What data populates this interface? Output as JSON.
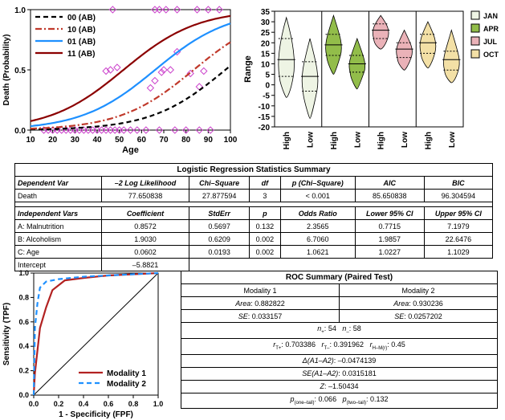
{
  "logistic_curve_chart": {
    "ylabel": "Death (Probability)",
    "xlabel": "Age",
    "legend": [
      "00 (AB)",
      "10 (AB)",
      "01 (AB)",
      "11 (AB)"
    ],
    "xticks": [
      "10",
      "20",
      "30",
      "40",
      "50",
      "60",
      "70",
      "80",
      "90",
      "100"
    ],
    "yticks": [
      "0.0",
      "0.5",
      "1.0"
    ]
  },
  "violin_chart": {
    "ylabel": "Range",
    "yticks": [
      "-20",
      "-15",
      "-10",
      "-5",
      "0",
      "5",
      "10",
      "15",
      "20",
      "25",
      "30",
      "35"
    ],
    "legend": [
      "JAN",
      "APR",
      "JUL",
      "OCT"
    ],
    "colors": {
      "JAN": "#eef4e4",
      "APR": "#92bd4a",
      "JUL": "#eab2b8",
      "OCT": "#f3e0a6"
    },
    "xlabels": [
      "High",
      "Low",
      "High",
      "Low",
      "High",
      "Low",
      "High",
      "Low"
    ]
  },
  "logit_table": {
    "title": "Logistic Regression Statistics Summary",
    "header1": [
      "Dependent Var",
      "–2 Log Likelihood",
      "Chi–Square",
      "df",
      "p (Chi–Square)",
      "AIC",
      "BIC"
    ],
    "row1": [
      "Death",
      "77.650838",
      "27.877594",
      "3",
      "< 0.001",
      "85.650838",
      "96.304594"
    ],
    "header2": [
      "Independent Vars",
      "Coefficient",
      "StdErr",
      "p",
      "Odds Ratio",
      "Lower 95% CI",
      "Upper 95% CI"
    ],
    "rows": [
      [
        "A: Malnutrition",
        "0.8572",
        "0.5697",
        "0.132",
        "2.3565",
        "0.7715",
        "7.1979"
      ],
      [
        "B: Alcoholism",
        "1.9030",
        "0.6209",
        "0.002",
        "6.7060",
        "1.9857",
        "22.6476"
      ],
      [
        "C: Age",
        "0.0602",
        "0.0193",
        "0.002",
        "1.0621",
        "1.0227",
        "1.1029"
      ]
    ],
    "intercept_label": "Intercept",
    "intercept_value": "–5.8821"
  },
  "roc_chart": {
    "ylabel": "Sensitivity (TPF)",
    "xlabel": "1 - Specificity (FPF)",
    "legend": [
      "Modality 1",
      "Modality 2"
    ],
    "ticks": [
      "0.0",
      "0.2",
      "0.4",
      "0.6",
      "0.8",
      "1.0"
    ]
  },
  "roc_table": {
    "title": "ROC Summary (Paired Test)",
    "mod1": "Modality 1",
    "mod2": "Modality 2",
    "area_label": "Area",
    "area1": "0.882822",
    "area2": "0.930236",
    "se_label": "SE",
    "se1": "0.033157",
    "se2": "0.0257202",
    "n_plus": "54",
    "n_minus": "58",
    "r_tplus": "0.703386",
    "r_tminus": "0.391962",
    "r_hm": "0.45",
    "delta_label": "Δ(A1–A2)",
    "delta": "–0.0474139",
    "se_diff_label": "SE(A1–A2)",
    "se_diff": "0.0315181",
    "z_label": "Z",
    "z": "–1.50434",
    "p_one": "0.066",
    "p_two": "0.132"
  },
  "chart_data": [
    {
      "type": "line",
      "ylabel": "Death (Probability)",
      "xlabel": "Age",
      "xlim": [
        10,
        100
      ],
      "ylim": [
        0,
        1
      ],
      "series": [
        {
          "name": "00 (AB)",
          "color": "#000000",
          "style": "dashed",
          "b0": -5.8821,
          "b1": 0.0602
        },
        {
          "name": "10 (AB)",
          "color": "#c0392b",
          "style": "dash-dot",
          "b0": -5.0249,
          "b1": 0.0602
        },
        {
          "name": "01 (AB)",
          "color": "#1e90ff",
          "style": "solid",
          "b0": -3.9791,
          "b1": 0.0602
        },
        {
          "name": "11 (AB)",
          "color": "#8b0000",
          "style": "solid",
          "b0": -3.1219,
          "b1": 0.0602
        }
      ],
      "points_top": [
        [
          47,
          1
        ],
        [
          66,
          1
        ],
        [
          68,
          1
        ],
        [
          71,
          1
        ],
        [
          76,
          1
        ],
        [
          85,
          1
        ],
        [
          90,
          1
        ],
        [
          95,
          1
        ]
      ],
      "points_mid": [
        [
          44,
          0.49
        ],
        [
          46,
          0.5
        ],
        [
          49,
          0.52
        ],
        [
          64,
          0.35
        ],
        [
          66,
          0.41
        ],
        [
          69,
          0.48
        ],
        [
          70,
          0.5
        ],
        [
          73,
          0.5
        ],
        [
          76,
          0.65
        ],
        [
          82,
          0.47
        ],
        [
          86,
          0.36
        ],
        [
          88,
          0.49
        ]
      ],
      "points_bottom": [
        [
          16,
          0
        ],
        [
          18,
          0
        ],
        [
          20,
          0
        ],
        [
          22,
          0
        ],
        [
          24,
          0
        ],
        [
          26,
          0
        ],
        [
          28,
          0
        ],
        [
          30,
          0
        ],
        [
          32,
          0
        ],
        [
          34,
          0
        ],
        [
          36,
          0
        ],
        [
          38,
          0
        ],
        [
          40,
          0
        ],
        [
          42,
          0
        ],
        [
          44,
          0
        ],
        [
          46,
          0
        ],
        [
          48,
          0
        ],
        [
          50,
          0
        ],
        [
          52,
          0
        ],
        [
          55,
          0
        ],
        [
          58,
          0
        ],
        [
          62,
          0
        ],
        [
          68,
          0
        ],
        [
          75,
          0
        ],
        [
          80,
          0
        ],
        [
          86,
          0
        ],
        [
          91,
          0
        ]
      ]
    },
    {
      "type": "violin",
      "ylabel": "Range",
      "ylim": [
        -20,
        35
      ],
      "groups": [
        {
          "month": "JAN",
          "class": "High",
          "min": -6,
          "max": 32,
          "median": 12,
          "q1": 4,
          "q3": 22
        },
        {
          "month": "JAN",
          "class": "Low",
          "min": -16,
          "max": 22,
          "median": 4,
          "q1": -3,
          "q3": 11
        },
        {
          "month": "APR",
          "class": "High",
          "min": 5,
          "max": 33,
          "median": 19,
          "q1": 14,
          "q3": 24
        },
        {
          "month": "APR",
          "class": "Low",
          "min": -2,
          "max": 22,
          "median": 10,
          "q1": 6,
          "q3": 14
        },
        {
          "month": "JUL",
          "class": "High",
          "min": 17,
          "max": 33,
          "median": 26,
          "q1": 22,
          "q3": 29
        },
        {
          "month": "JUL",
          "class": "Low",
          "min": 7,
          "max": 26,
          "median": 17,
          "q1": 13,
          "q3": 20
        },
        {
          "month": "OCT",
          "class": "High",
          "min": 8,
          "max": 30,
          "median": 20,
          "q1": 15,
          "q3": 24
        },
        {
          "month": "OCT",
          "class": "Low",
          "min": 1,
          "max": 26,
          "median": 12,
          "q1": 7,
          "q3": 16
        }
      ]
    },
    {
      "type": "line",
      "ylabel": "Sensitivity (TPF)",
      "xlabel": "1 - Specificity (FPF)",
      "xlim": [
        0,
        1
      ],
      "ylim": [
        0,
        1
      ],
      "series": [
        {
          "name": "Modality 1",
          "color": "#b22222",
          "style": "solid",
          "x": [
            0,
            0.01,
            0.05,
            0.1,
            0.15,
            0.25,
            0.4,
            0.6,
            0.8,
            1.0
          ],
          "y": [
            0,
            0.18,
            0.55,
            0.72,
            0.86,
            0.94,
            0.96,
            0.98,
            0.99,
            1.0
          ]
        },
        {
          "name": "Modality 2",
          "color": "#1e90ff",
          "style": "dashed",
          "x": [
            0,
            0.01,
            0.03,
            0.05,
            0.1,
            0.2,
            0.4,
            0.6,
            0.8,
            1.0
          ],
          "y": [
            0,
            0.55,
            0.75,
            0.88,
            0.93,
            0.95,
            0.97,
            0.98,
            0.99,
            1.0
          ]
        }
      ]
    }
  ]
}
